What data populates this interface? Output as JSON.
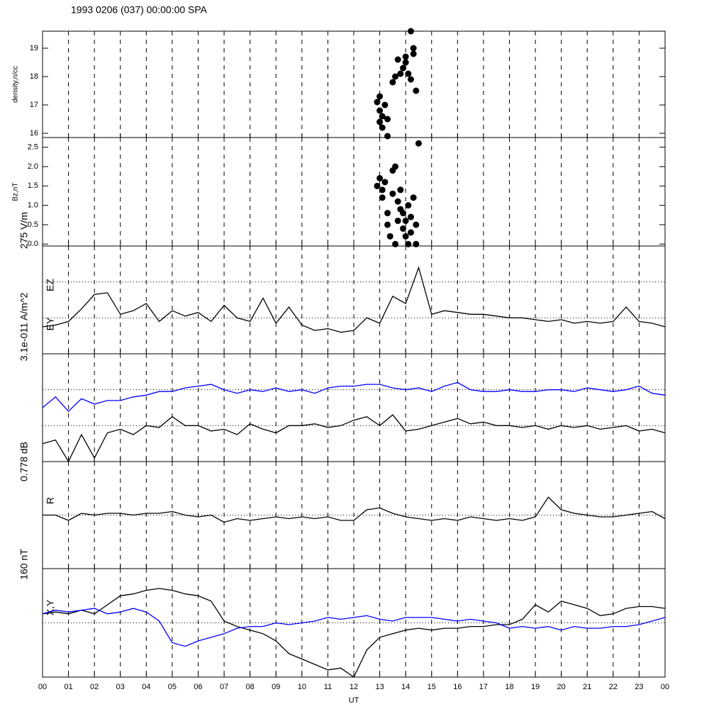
{
  "chart_data": [
    {
      "type": "scatter",
      "title": "1993 0206 (037) 00:00:00 SPA",
      "ylabel": "density,n/cc",
      "xlim": [
        0,
        24
      ],
      "ylim": [
        15.85,
        19.6
      ],
      "yticks": [
        16,
        17,
        18,
        19
      ],
      "color": "#000000",
      "x": [
        12.9,
        13.0,
        13.0,
        13.1,
        13.1,
        13.2,
        13.3,
        13.0,
        13.3,
        13.5,
        13.6,
        13.7,
        13.8,
        13.9,
        14.0,
        14.0,
        14.1,
        14.2,
        14.3,
        14.3,
        14.4,
        14.2
      ],
      "values": [
        17.1,
        17.3,
        16.8,
        16.2,
        16.6,
        17.0,
        16.5,
        16.4,
        15.9,
        17.8,
        18.0,
        18.6,
        18.1,
        18.3,
        18.7,
        18.5,
        18.1,
        17.9,
        18.8,
        19.0,
        17.5,
        19.6
      ]
    },
    {
      "type": "scatter",
      "ylabel": "Bz,nT",
      "xlim": [
        0,
        24
      ],
      "ylim": [
        -0.05,
        2.75
      ],
      "yticks": [
        {
          "value": 0,
          "label": "0.0"
        },
        0.5,
        {
          "value": 1,
          "label": "1.0"
        },
        1.5,
        {
          "value": 2,
          "label": "2.0"
        },
        2.5
      ],
      "color": "#000000",
      "x": [
        12.9,
        13.0,
        13.1,
        13.1,
        13.2,
        13.3,
        13.4,
        13.5,
        13.5,
        13.6,
        13.6,
        13.7,
        13.7,
        13.8,
        13.9,
        13.9,
        14.0,
        14.0,
        14.1,
        14.1,
        14.2,
        14.2,
        14.3,
        14.4,
        14.4,
        13.3,
        13.8,
        14.5
      ],
      "values": [
        1.5,
        1.7,
        1.4,
        1.2,
        1.6,
        0.8,
        0.2,
        1.9,
        1.3,
        2.0,
        0.0,
        1.1,
        0.6,
        0.9,
        0.4,
        0.8,
        0.6,
        0.2,
        1.0,
        0.0,
        0.7,
        0.3,
        1.2,
        0.0,
        0.5,
        0.5,
        1.4,
        2.6
      ]
    },
    {
      "type": "line",
      "scale_label": "275 V/m",
      "labels": [
        "EZ",
        "EY"
      ],
      "xlim": [
        0,
        24
      ],
      "ylim": [
        -3,
        3
      ],
      "hlines": [
        1,
        -1
      ],
      "x": [
        0,
        0.5,
        1,
        1.5,
        2,
        2.5,
        3,
        3.5,
        4,
        4.5,
        5,
        5.5,
        6,
        6.5,
        7,
        7.5,
        8,
        8.5,
        9,
        9.5,
        10,
        10.5,
        11,
        11.5,
        12,
        12.5,
        13,
        13.5,
        14,
        14.5,
        15,
        15.5,
        16,
        16.5,
        17,
        17.5,
        18,
        18.5,
        19,
        19.5,
        20,
        20.5,
        21,
        21.5,
        22,
        22.5,
        23,
        23.5,
        24
      ],
      "series": [
        {
          "color": "#000000",
          "values": [
            -1.5,
            -1.4,
            -1.2,
            -0.5,
            0.3,
            0.4,
            -0.8,
            -0.6,
            -0.2,
            -1.2,
            -0.6,
            -0.9,
            -0.7,
            -1.2,
            -0.3,
            -1.0,
            -1.2,
            0.1,
            -1.3,
            -0.4,
            -1.4,
            -1.7,
            -1.6,
            -1.8,
            -1.7,
            -1.0,
            -1.3,
            0.2,
            -0.2,
            1.8,
            -0.8,
            -0.6,
            -0.7,
            -0.8,
            -0.8,
            -0.9,
            -1.0,
            -1.0,
            -1.1,
            -1.2,
            -1.1,
            -1.3,
            -1.2,
            -1.3,
            -1.2,
            -0.4,
            -1.2,
            -1.3,
            -1.5
          ]
        }
      ]
    },
    {
      "type": "line",
      "scale_label": "3.1e-011 A/m^2",
      "labels": [],
      "xlim": [
        0,
        24
      ],
      "ylim": [
        -3,
        3
      ],
      "hlines": [
        1,
        -1
      ],
      "x": [
        0,
        0.5,
        1,
        1.5,
        2,
        2.5,
        3,
        3.5,
        4,
        4.5,
        5,
        5.5,
        6,
        6.5,
        7,
        7.5,
        8,
        8.5,
        9,
        9.5,
        10,
        10.5,
        11,
        11.5,
        12,
        12.5,
        13,
        13.5,
        14,
        14.5,
        15,
        15.5,
        16,
        16.5,
        17,
        17.5,
        18,
        18.5,
        19,
        19.5,
        20,
        20.5,
        21,
        21.5,
        22,
        22.5,
        23,
        23.5,
        24
      ],
      "series": [
        {
          "color": "#0000ff",
          "values": [
            0.0,
            0.6,
            -0.2,
            0.5,
            0.2,
            0.4,
            0.4,
            0.6,
            0.7,
            0.9,
            0.9,
            1.1,
            1.2,
            1.3,
            1.0,
            0.8,
            1.0,
            0.9,
            1.1,
            0.9,
            1.0,
            0.8,
            1.1,
            1.2,
            1.2,
            1.3,
            1.3,
            1.1,
            1.0,
            1.1,
            0.9,
            1.2,
            1.4,
            1.0,
            0.9,
            0.9,
            1.0,
            0.9,
            0.9,
            1.0,
            1.0,
            0.9,
            1.1,
            1.0,
            0.9,
            1.0,
            1.2,
            0.8,
            0.7
          ]
        },
        {
          "color": "#000000",
          "values": [
            -2.0,
            -1.8,
            -3.0,
            -1.5,
            -2.8,
            -1.4,
            -1.2,
            -1.5,
            -1.0,
            -1.1,
            -0.5,
            -1.0,
            -1.0,
            -1.3,
            -1.2,
            -1.5,
            -0.9,
            -1.2,
            -1.4,
            -1.0,
            -1.0,
            -0.9,
            -1.1,
            -1.0,
            -0.7,
            -0.5,
            -1.0,
            -0.4,
            -1.3,
            -1.2,
            -1.0,
            -0.8,
            -0.6,
            -0.9,
            -0.8,
            -1.0,
            -1.0,
            -1.1,
            -1.0,
            -1.2,
            -1.0,
            -1.1,
            -1.0,
            -1.2,
            -1.1,
            -1.0,
            -1.3,
            -1.2,
            -1.4
          ]
        }
      ]
    },
    {
      "type": "line",
      "scale_label": "0.778 dB",
      "labels": [
        "R"
      ],
      "xlim": [
        0,
        24
      ],
      "ylim": [
        -3,
        3
      ],
      "hlines": [
        0
      ],
      "x": [
        0,
        0.5,
        1,
        1.5,
        2,
        2.5,
        3,
        3.5,
        4,
        4.5,
        5,
        5.5,
        6,
        6.5,
        7,
        7.5,
        8,
        8.5,
        9,
        9.5,
        10,
        10.5,
        11,
        11.5,
        12,
        12.5,
        13,
        13.5,
        14,
        14.5,
        15,
        15.5,
        16,
        16.5,
        17,
        17.5,
        18,
        18.5,
        19,
        19.5,
        20,
        20.5,
        21,
        21.5,
        22,
        22.5,
        23,
        23.5,
        24
      ],
      "series": [
        {
          "color": "#000000",
          "values": [
            0.0,
            0.0,
            -0.3,
            0.1,
            0.0,
            0.1,
            0.1,
            0.0,
            0.1,
            0.1,
            0.2,
            0.0,
            -0.1,
            0.0,
            -0.4,
            -0.2,
            -0.3,
            -0.2,
            -0.1,
            -0.2,
            -0.1,
            -0.2,
            -0.1,
            -0.3,
            -0.3,
            0.3,
            0.4,
            0.1,
            -0.1,
            -0.2,
            -0.3,
            -0.2,
            -0.3,
            -0.1,
            -0.2,
            -0.3,
            -0.2,
            -0.3,
            -0.1,
            1.0,
            0.3,
            0.1,
            0.0,
            -0.1,
            -0.1,
            0.0,
            0.1,
            0.2,
            -0.2
          ]
        }
      ]
    },
    {
      "type": "line",
      "scale_label": "160 nT",
      "labels": [
        "X,Y"
      ],
      "xlim": [
        0,
        24
      ],
      "ylim": [
        -3,
        3
      ],
      "hlines": [
        0
      ],
      "xlabel": "UT",
      "xticks": [
        {
          "value": 0,
          "label": "00"
        },
        {
          "value": 1,
          "label": "01"
        },
        {
          "value": 2,
          "label": "02"
        },
        {
          "value": 3,
          "label": "03"
        },
        {
          "value": 4,
          "label": "04"
        },
        {
          "value": 5,
          "label": "05"
        },
        {
          "value": 6,
          "label": "06"
        },
        {
          "value": 7,
          "label": "07"
        },
        {
          "value": 8,
          "label": "08"
        },
        {
          "value": 9,
          "label": "09"
        },
        10,
        11,
        12,
        13,
        14,
        15,
        16,
        17,
        18,
        19,
        20,
        21,
        22,
        23,
        {
          "value": 24,
          "label": "00"
        }
      ],
      "x": [
        0,
        0.5,
        1,
        1.5,
        2,
        2.5,
        3,
        3.5,
        4,
        4.5,
        5,
        5.5,
        6,
        6.5,
        7,
        7.5,
        8,
        8.5,
        9,
        9.5,
        10,
        10.5,
        11,
        11.5,
        12,
        12.5,
        13,
        13.5,
        14,
        14.5,
        15,
        15.5,
        16,
        16.5,
        17,
        17.5,
        18,
        18.5,
        19,
        19.5,
        20,
        20.5,
        21,
        21.5,
        22,
        22.5,
        23,
        23.5,
        24
      ],
      "series": [
        {
          "color": "#000000",
          "values": [
            0.5,
            0.6,
            0.5,
            0.7,
            0.5,
            1.0,
            1.5,
            1.6,
            1.8,
            1.9,
            1.8,
            1.6,
            1.5,
            1.2,
            0.1,
            -0.2,
            -0.4,
            -0.6,
            -1.0,
            -1.7,
            -2.0,
            -2.3,
            -2.6,
            -2.5,
            -3.0,
            -1.5,
            -0.8,
            -0.6,
            -0.4,
            -0.3,
            -0.4,
            -0.3,
            -0.3,
            -0.2,
            -0.2,
            -0.1,
            -0.1,
            0.2,
            1.0,
            0.6,
            1.2,
            1.0,
            0.8,
            0.4,
            0.5,
            0.8,
            0.9,
            0.9,
            0.8
          ]
        },
        {
          "color": "#0000ff",
          "values": [
            0.5,
            0.7,
            0.6,
            0.7,
            0.8,
            0.5,
            0.6,
            0.8,
            0.6,
            0.1,
            -1.1,
            -1.3,
            -1.0,
            -0.8,
            -0.6,
            -0.3,
            -0.2,
            -0.2,
            0.0,
            -0.1,
            0.0,
            0.1,
            0.3,
            0.2,
            0.3,
            0.4,
            0.2,
            0.1,
            0.3,
            0.3,
            0.3,
            0.2,
            0.1,
            0.2,
            0.1,
            0.0,
            -0.3,
            -0.2,
            -0.3,
            -0.2,
            -0.4,
            -0.2,
            -0.3,
            -0.3,
            -0.2,
            -0.2,
            -0.1,
            0.1,
            0.3
          ]
        }
      ]
    }
  ]
}
